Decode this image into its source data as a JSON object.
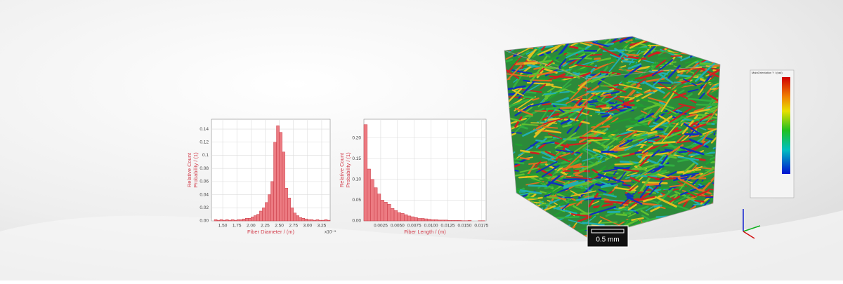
{
  "chart_data": [
    {
      "type": "histogram",
      "x_label": "Fiber Diameter / (m)",
      "y_label": [
        "Relative Count",
        "Probability / (1)"
      ],
      "x_multiplier": "x10⁻⁵",
      "color": "#ec7b82",
      "edge_color": "#c93a45",
      "bins": [
        1.3,
        1.35,
        1.4,
        1.45,
        1.5,
        1.55,
        1.6,
        1.65,
        1.7,
        1.75,
        1.8,
        1.85,
        1.9,
        1.95,
        2.0,
        2.05,
        2.1,
        2.15,
        2.2,
        2.25,
        2.3,
        2.35,
        2.4,
        2.45,
        2.5,
        2.55,
        2.6,
        2.65,
        2.7,
        2.75,
        2.8,
        2.85,
        2.9,
        2.95,
        3.0,
        3.05,
        3.1,
        3.15,
        3.2,
        3.25,
        3.3,
        3.35,
        3.4
      ],
      "values": [
        0,
        0.002,
        0.001,
        0.002,
        0.001,
        0.002,
        0.001,
        0.002,
        0.001,
        0.002,
        0.002,
        0.003,
        0.004,
        0.004,
        0.006,
        0.008,
        0.01,
        0.015,
        0.02,
        0.028,
        0.04,
        0.06,
        0.12,
        0.145,
        0.135,
        0.105,
        0.05,
        0.035,
        0.02,
        0.012,
        0.008,
        0.005,
        0.004,
        0.003,
        0.002,
        0.002,
        0.001,
        0.002,
        0.001,
        0.001,
        0.002,
        0.001
      ],
      "xlim": [
        1.3,
        3.4
      ],
      "ylim": [
        0,
        0.155
      ],
      "xticks": [
        {
          "value": 1.5,
          "label": "1.50"
        },
        1.75,
        {
          "value": 2.0,
          "label": "2.00"
        },
        2.25,
        {
          "value": 2.5,
          "label": "2.50"
        },
        2.75,
        {
          "value": 3.0,
          "label": "3.00"
        },
        3.25
      ],
      "yticks": [
        {
          "value": 0,
          "label": "0.00"
        },
        0.02,
        0.04,
        0.06,
        0.08,
        {
          "value": 0.1,
          "label": "0.1"
        },
        0.12,
        0.14
      ],
      "grid": true
    },
    {
      "type": "histogram",
      "x_label": "Fiber Length / (m)",
      "y_label": [
        "Relative Count",
        "Probability / (1)"
      ],
      "color": "#ec7b82",
      "edge_color": "#c93a45",
      "bins": [
        0,
        0.0005,
        0.001,
        0.0015,
        0.002,
        0.0025,
        0.003,
        0.0035,
        0.004,
        0.0045,
        0.005,
        0.0055,
        0.006,
        0.0065,
        0.007,
        0.0075,
        0.008,
        0.0085,
        0.009,
        0.0095,
        0.01,
        0.0105,
        0.011,
        0.0115,
        0.012,
        0.0125,
        0.013,
        0.0135,
        0.014,
        0.0145,
        0.015,
        0.0155,
        0.016,
        0.0165,
        0.017,
        0.0175,
        0.018
      ],
      "values": [
        0.232,
        0.125,
        0.1,
        0.08,
        0.065,
        0.05,
        0.045,
        0.04,
        0.03,
        0.025,
        0.02,
        0.018,
        0.015,
        0.012,
        0.01,
        0.008,
        0.006,
        0.006,
        0.005,
        0.004,
        0.003,
        0.003,
        0.002,
        0.002,
        0.002,
        0.001,
        0.001,
        0.001,
        0.001,
        0.0005,
        0.0005,
        0.001,
        0,
        0,
        0.0005,
        0.0005
      ],
      "xlim": [
        0,
        0.0182
      ],
      "ylim": [
        0,
        0.245
      ],
      "xticks": [
        0.0025,
        {
          "value": 0.005,
          "label": "0.0050"
        },
        0.0075,
        {
          "value": 0.01,
          "label": "0.0100"
        },
        0.0125,
        {
          "value": 0.015,
          "label": "0.0150"
        },
        0.0175
      ],
      "yticks": [
        {
          "value": 0,
          "label": "0.00"
        },
        0.05,
        {
          "value": 0.1,
          "label": "0.10"
        },
        0.15,
        {
          "value": 0.2,
          "label": "0.20"
        }
      ],
      "grid": true
    }
  ],
  "render": {
    "colorbar_title": "MainOrientation Y / (rad)",
    "scale_label": "0.5 mm"
  }
}
